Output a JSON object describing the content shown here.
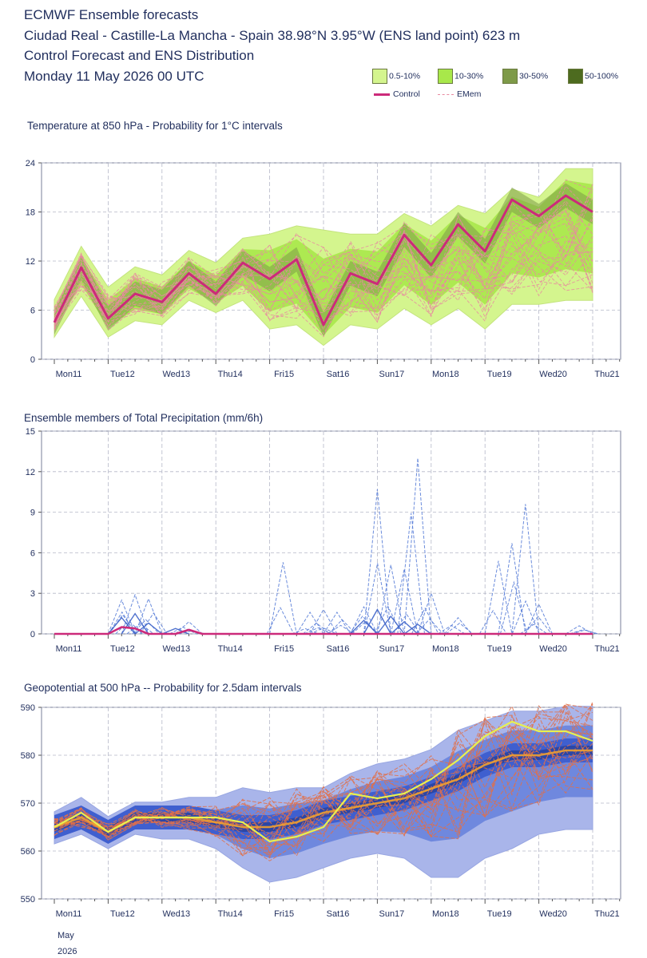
{
  "header": {
    "line1": "ECMWF Ensemble forecasts",
    "line2": "Ciudad Real - Castille-La Mancha - Spain 38.98°N 3.95°W (ENS land point) 623 m",
    "line3": "Control Forecast and ENS Distribution",
    "line4": "Monday 11 May 2026 00 UTC"
  },
  "legend": {
    "items": [
      {
        "label": "0.5-10%",
        "color": "#d4f58e"
      },
      {
        "label": "10-30%",
        "color": "#a8e84a"
      },
      {
        "label": "30-50%",
        "color": "#7e9a48"
      },
      {
        "label": "50-100%",
        "color": "#4d6b1f"
      }
    ],
    "control_label": "Control",
    "control_color": "#cc2a7a",
    "emem_label": "EMem",
    "emem_color": "#e88aa0"
  },
  "days": [
    "Mon11",
    "Tue12",
    "Wed13",
    "Thu14",
    "Fri15",
    "Sat16",
    "Sun17",
    "Mon18",
    "Tue19",
    "Wed20",
    "Thu21"
  ],
  "sunday_color": "#e0201a",
  "footer": {
    "month": "May",
    "year": "2026"
  },
  "chart_data": [
    {
      "type": "line",
      "title": "Temperature at 850 hPa - Probability for 1°C intervals",
      "ylim": [
        0,
        24
      ],
      "yticks": [
        0,
        6,
        12,
        18,
        24
      ],
      "x_hours": [
        0,
        12,
        24,
        36,
        48,
        60,
        72,
        84,
        96,
        108,
        120,
        132,
        144,
        156,
        168,
        180,
        192,
        204,
        216,
        228,
        240
      ],
      "series": [
        {
          "name": "Control",
          "values": [
            4.5,
            11.2,
            5.0,
            8.0,
            7.0,
            10.5,
            8.0,
            11.8,
            9.8,
            12.2,
            4.2,
            10.5,
            9.2,
            15.2,
            11.5,
            16.5,
            13.2,
            19.5,
            17.5,
            20.0,
            18.0
          ]
        }
      ],
      "envelope_low": [
        3.5,
        8.5,
        3.5,
        5.5,
        5.0,
        8.0,
        6.5,
        8.0,
        4.5,
        5.0,
        2.5,
        5.0,
        4.5,
        7.0,
        5.0,
        7.0,
        4.5,
        7.5,
        7.5,
        8.0,
        8.0
      ],
      "envelope_high": [
        6.5,
        13.0,
        8.0,
        10.5,
        9.5,
        12.5,
        11.0,
        14.0,
        14.5,
        15.5,
        15.0,
        14.5,
        14.5,
        17.0,
        15.5,
        18.0,
        17.0,
        20.0,
        19.0,
        22.5,
        22.5
      ]
    },
    {
      "type": "line",
      "title": "Ensemble members of Total Precipitation (mm/6h)",
      "ylim": [
        0,
        15
      ],
      "yticks": [
        0,
        3,
        6,
        9,
        12,
        15
      ],
      "x_hours": [
        0,
        6,
        12,
        18,
        24,
        30,
        36,
        42,
        48,
        54,
        60,
        66,
        72,
        78,
        84,
        90,
        96,
        102,
        108,
        114,
        120,
        126,
        132,
        138,
        144,
        150,
        156,
        162,
        168,
        174,
        180,
        186,
        192,
        198,
        204,
        210,
        216,
        222,
        228,
        234,
        240
      ],
      "series": [
        {
          "name": "Control",
          "values": [
            0,
            0,
            0,
            0,
            0,
            0.5,
            0.4,
            0,
            0,
            0,
            0.3,
            0,
            0,
            0,
            0,
            0,
            0,
            0,
            0,
            0,
            0,
            0,
            0,
            0,
            0,
            0,
            0,
            0,
            0,
            0,
            0,
            0,
            0,
            0,
            0,
            0,
            0,
            0,
            0,
            0,
            0
          ]
        }
      ],
      "member_peaks": [
        {
          "hour": 30,
          "value": 2.5
        },
        {
          "hour": 36,
          "value": 2.9
        },
        {
          "hour": 42,
          "value": 2.6
        },
        {
          "hour": 60,
          "value": 0.9
        },
        {
          "hour": 102,
          "value": 5.3
        },
        {
          "hour": 114,
          "value": 1.6
        },
        {
          "hour": 120,
          "value": 1.8
        },
        {
          "hour": 126,
          "value": 1.6
        },
        {
          "hour": 138,
          "value": 2.0
        },
        {
          "hour": 144,
          "value": 10.7
        },
        {
          "hour": 150,
          "value": 5.1
        },
        {
          "hour": 156,
          "value": 4.8
        },
        {
          "hour": 162,
          "value": 13.0
        },
        {
          "hour": 168,
          "value": 3.0
        },
        {
          "hour": 180,
          "value": 1.2
        },
        {
          "hour": 198,
          "value": 5.4
        },
        {
          "hour": 204,
          "value": 6.7
        },
        {
          "hour": 210,
          "value": 9.6
        },
        {
          "hour": 216,
          "value": 2.2
        },
        {
          "hour": 234,
          "value": 0.6
        }
      ]
    },
    {
      "type": "line",
      "title": "Geopotential at 500 hPa -- Probability for 2.5dam intervals",
      "ylim": [
        550,
        590
      ],
      "yticks": [
        550,
        560,
        570,
        580,
        590
      ],
      "x_hours": [
        0,
        12,
        24,
        36,
        48,
        60,
        72,
        84,
        96,
        108,
        120,
        132,
        144,
        156,
        168,
        180,
        192,
        204,
        216,
        228,
        240
      ],
      "series": [
        {
          "name": "Control",
          "values": [
            565,
            568,
            564,
            567,
            567,
            567,
            567,
            566,
            562,
            563,
            565,
            572,
            571,
            572,
            575,
            579,
            584,
            587,
            585,
            585,
            583
          ]
        },
        {
          "name": "EMem",
          "values": [
            565,
            567,
            564,
            567,
            567,
            567,
            566,
            565,
            565,
            566,
            568,
            569,
            570,
            571,
            573,
            575,
            578,
            580,
            580,
            581,
            581
          ]
        }
      ],
      "envelope_low": [
        563,
        565,
        562,
        565,
        564,
        564,
        562,
        558,
        555,
        556,
        558,
        560,
        561,
        560,
        556,
        556,
        560,
        562,
        565,
        566,
        566
      ],
      "envelope_high": [
        567,
        570,
        566,
        569,
        569,
        570,
        570,
        572,
        571,
        572,
        572,
        575,
        577,
        578,
        580,
        584,
        586,
        588,
        588,
        589,
        589
      ]
    }
  ]
}
